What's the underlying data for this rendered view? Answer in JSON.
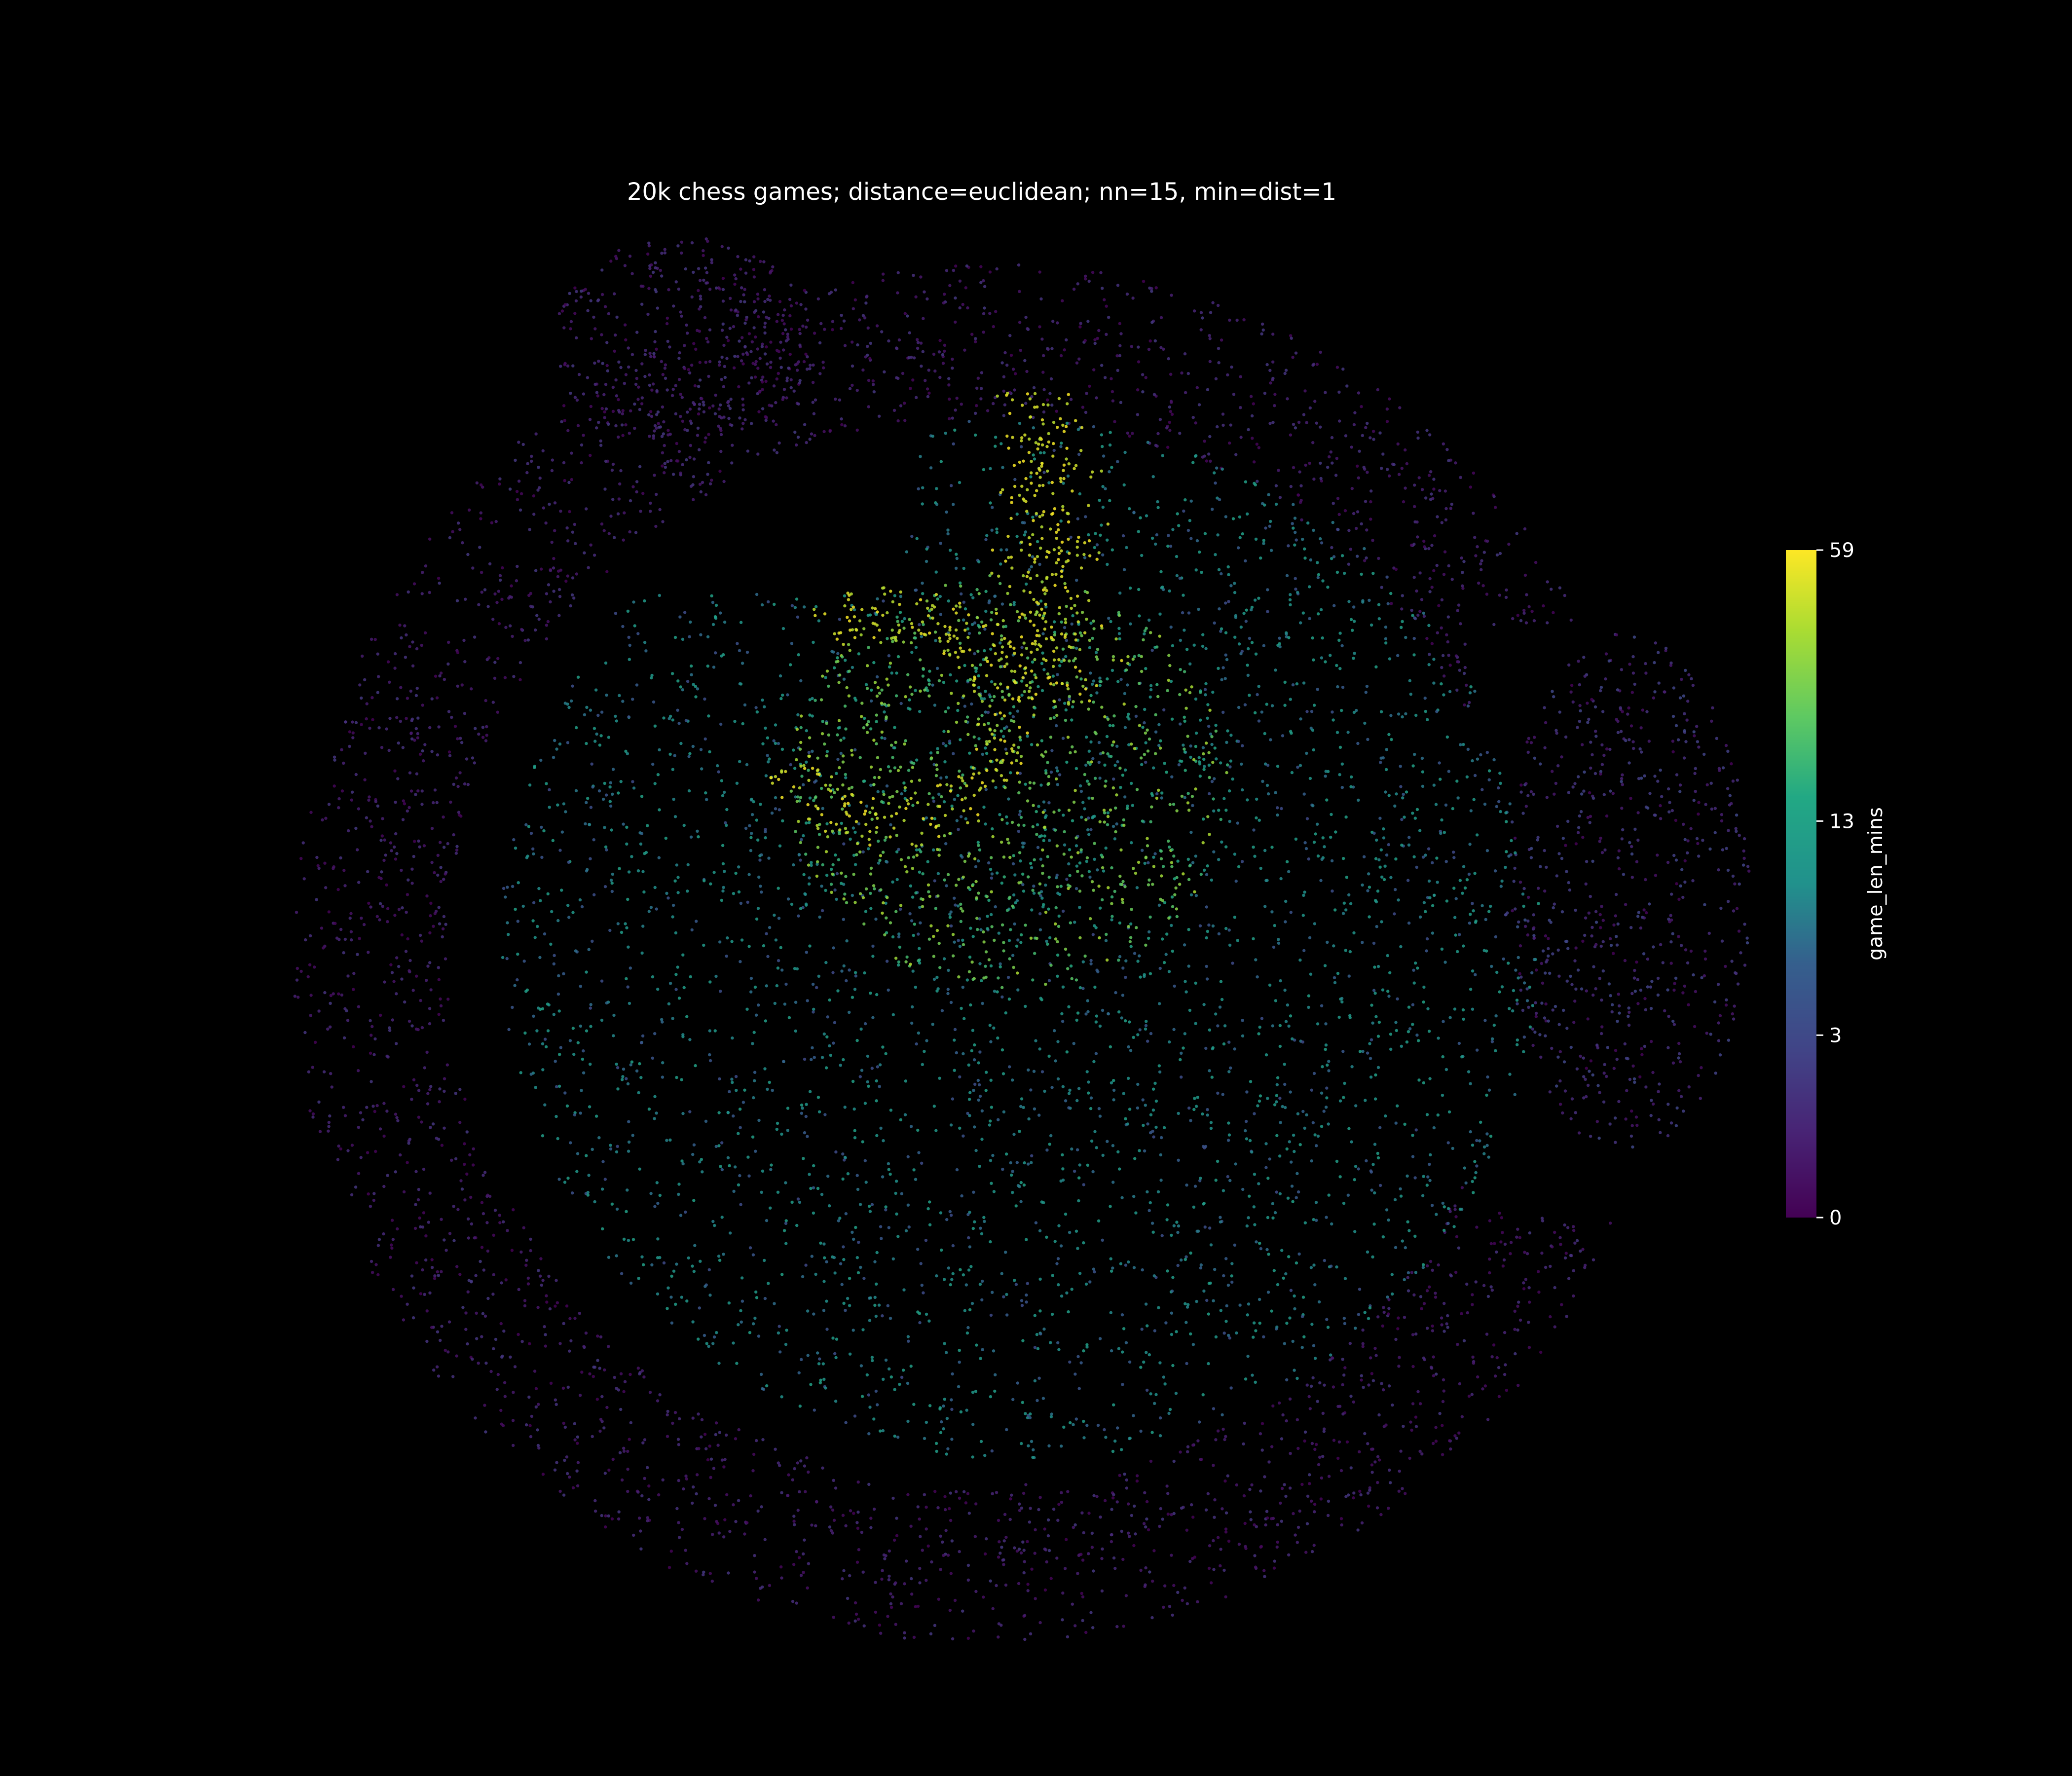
{
  "chart_data": {
    "type": "scatter",
    "title": "20k chess games; distance=euclidean; nn=15, min=dist=1",
    "xlabel": "",
    "ylabel": "",
    "axes_visible": false,
    "grid": false,
    "background": "#000000",
    "point_count_approx": 20000,
    "colormap": "viridis",
    "colorbar": {
      "label": "game_len_mins",
      "range": [
        0,
        59
      ],
      "ticks": [
        0,
        3,
        13,
        59
      ],
      "tick_labels": [
        "0",
        "3",
        "13",
        "59"
      ],
      "scale": "symlog",
      "placement": "right"
    },
    "regions": [
      {
        "name": "outer ring",
        "shape": "annulus",
        "cx": 0.0,
        "cy": 0.0,
        "r_inner": 8.2,
        "r_outer": 10.6,
        "value_range": [
          0,
          2
        ],
        "share": 0.34
      },
      {
        "name": "top-left lobe",
        "shape": "ellipse",
        "cx": -4.6,
        "cy": 9.4,
        "rx": 2.0,
        "ry": 1.6,
        "value_range": [
          0,
          2
        ],
        "share": 0.04
      },
      {
        "name": "right lobe",
        "shape": "ellipse",
        "cx": 9.9,
        "cy": 0.9,
        "rx": 1.9,
        "ry": 4.0,
        "value_range": [
          0,
          3
        ],
        "share": 0.07
      },
      {
        "name": "central disc",
        "shape": "disc",
        "cx": 0.6,
        "cy": 0.2,
        "r": 8.0,
        "value_range": [
          3,
          13
        ],
        "share": 0.39
      },
      {
        "name": "inner core",
        "shape": "ellipse",
        "cx": 0.4,
        "cy": 2.6,
        "rx": 3.4,
        "ry": 3.2,
        "value_range": [
          13,
          40
        ],
        "share": 0.1
      },
      {
        "name": "hook",
        "shape": "arc",
        "cx": -1.4,
        "cy": 3.6,
        "r": 1.8,
        "value_range": [
          40,
          59
        ],
        "share": 0.03
      },
      {
        "name": "vertical arm",
        "shape": "band",
        "x": 1.1,
        "y_range": [
          3.8,
          8.6
        ],
        "value_range": [
          40,
          59
        ],
        "share": 0.03
      }
    ],
    "xlim": [
      -12.5,
      12.5
    ],
    "ylim": [
      -12.5,
      12.5
    ]
  }
}
